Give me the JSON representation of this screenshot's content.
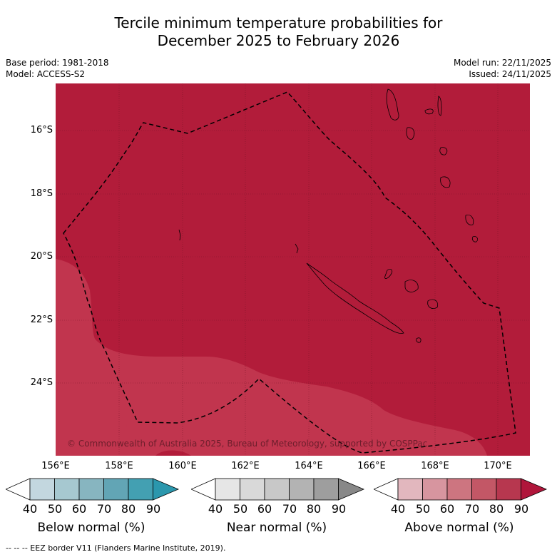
{
  "header": {
    "title_line1": "Tercile minimum temperature probabilities for",
    "title_line2": "December 2025 to February 2026",
    "base_period": "Base period: 1981-2018",
    "model": "Model: ACCESS-S2",
    "model_run": "Model run: 22/11/2025",
    "issued": "Issued: 24/11/2025"
  },
  "map": {
    "lat_labels": [
      "16°S",
      "18°S",
      "20°S",
      "22°S",
      "24°S"
    ],
    "lon_labels": [
      "156°E",
      "158°E",
      "160°E",
      "162°E",
      "164°E",
      "166°E",
      "168°E",
      "170°E"
    ],
    "copyright": "© Commonwealth of Australia 2025, Bureau of Meteorology, supported by COSPPac",
    "colors": {
      "above_80": "#b21c3a",
      "above_70": "#c1354e"
    }
  },
  "legends": {
    "below": {
      "title": "Below normal (%)",
      "ticks": [
        "40",
        "50",
        "60",
        "70",
        "80",
        "90"
      ],
      "colors": [
        "#ffffff",
        "#c3d7df",
        "#a6c8d0",
        "#87b5c0",
        "#62a5b5",
        "#43a0b2",
        "#2b97ad"
      ]
    },
    "near": {
      "title": "Near normal (%)",
      "ticks": [
        "40",
        "50",
        "60",
        "70",
        "80",
        "90"
      ],
      "colors": [
        "#ffffff",
        "#e6e6e6",
        "#d9d9d9",
        "#c8c8c8",
        "#b3b3b3",
        "#9e9e9e",
        "#888888"
      ]
    },
    "above": {
      "title": "Above normal (%)",
      "ticks": [
        "40",
        "50",
        "60",
        "70",
        "80",
        "90"
      ],
      "colors": [
        "#ffffff",
        "#e2b7be",
        "#d7959f",
        "#cd7580",
        "#c35766",
        "#b7374f",
        "#b0163b"
      ]
    }
  },
  "footer": {
    "eez_note": "--  --  -- EEZ border V11 (Flanders Marine Institute, 2019)."
  }
}
